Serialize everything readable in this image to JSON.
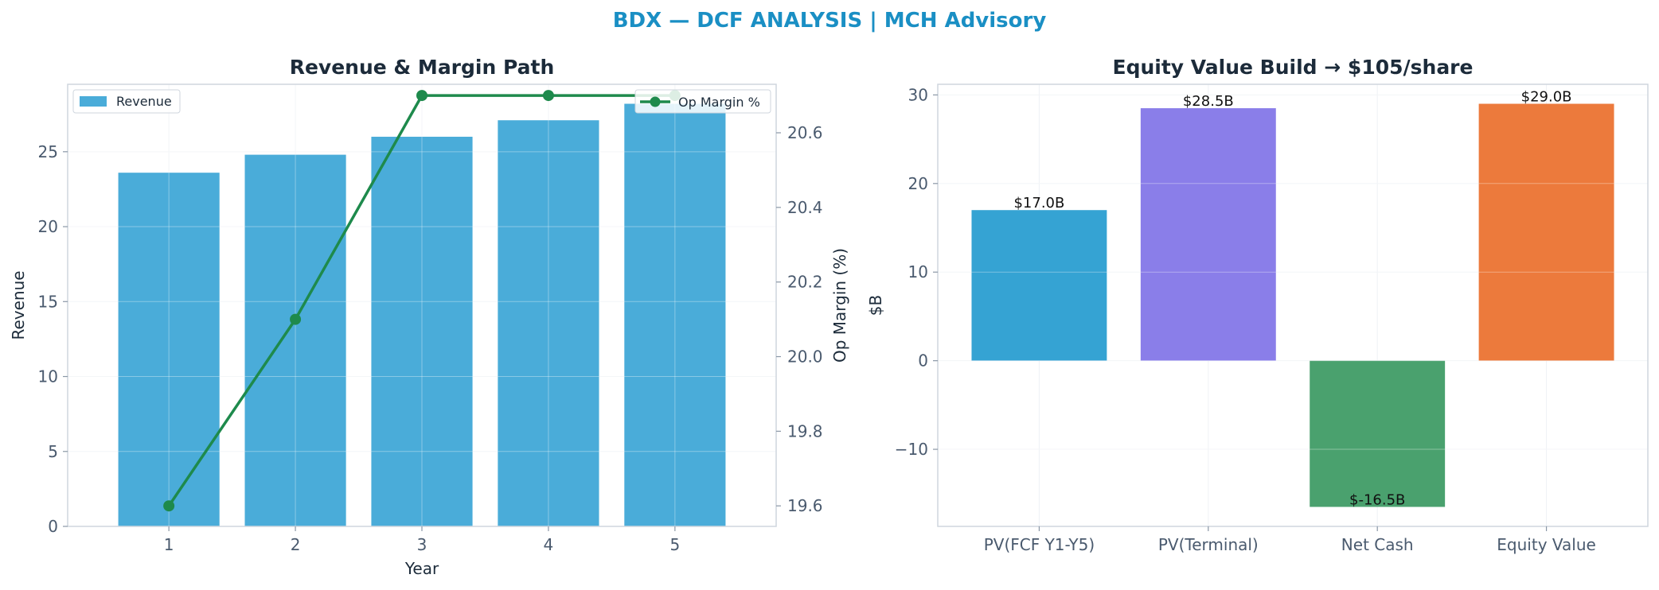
{
  "figure_title": "BDX — DCF ANALYSIS | MCH Advisory",
  "colors": {
    "title": "#1a8fc4",
    "revenue_bar": "#4aacd9",
    "margin_line": "#1e8a4c",
    "pv_fcf": "#35a3d3",
    "pv_terminal": "#8a7ee9",
    "net_cash": "#4aa16e",
    "equity_value": "#ec7a3c"
  },
  "chart_data": [
    {
      "type": "bar",
      "title": "Revenue & Margin Path",
      "xlabel": "Year",
      "ylabel": "Revenue",
      "y2label": "Op Margin (%)",
      "categories": [
        "1",
        "2",
        "3",
        "4",
        "5"
      ],
      "series": [
        {
          "name": "Revenue",
          "type": "bar",
          "axis": "left",
          "values": [
            23.6,
            24.8,
            26.0,
            27.1,
            28.2
          ]
        },
        {
          "name": "Op Margin %",
          "type": "line",
          "axis": "right",
          "values": [
            19.6,
            20.1,
            20.7,
            20.7,
            20.7
          ]
        }
      ],
      "ylim": [
        0,
        29.5
      ],
      "yticks": [
        0,
        5,
        10,
        15,
        20,
        25
      ],
      "y2lim": [
        19.545,
        20.73
      ],
      "y2ticks": [
        "19.6",
        "19.8",
        "20.0",
        "20.2",
        "20.4",
        "20.6"
      ],
      "legend": {
        "bar": "upper-left",
        "line": "upper-right"
      },
      "grid": true
    },
    {
      "type": "bar",
      "title": "Equity Value Build → $105/share",
      "xlabel": "",
      "ylabel": "$B",
      "categories": [
        "PV(FCF Y1-Y5)",
        "PV(Terminal)",
        "Net Cash",
        "Equity Value"
      ],
      "values": [
        17.0,
        28.5,
        -16.5,
        29.0
      ],
      "data_labels": [
        "$17.0B",
        "$28.5B",
        "$-16.5B",
        "$29.0B"
      ],
      "ylim": [
        -18.7,
        31.2
      ],
      "yticks": [
        "−10",
        "0",
        "10",
        "20",
        "30"
      ],
      "grid": true
    }
  ]
}
